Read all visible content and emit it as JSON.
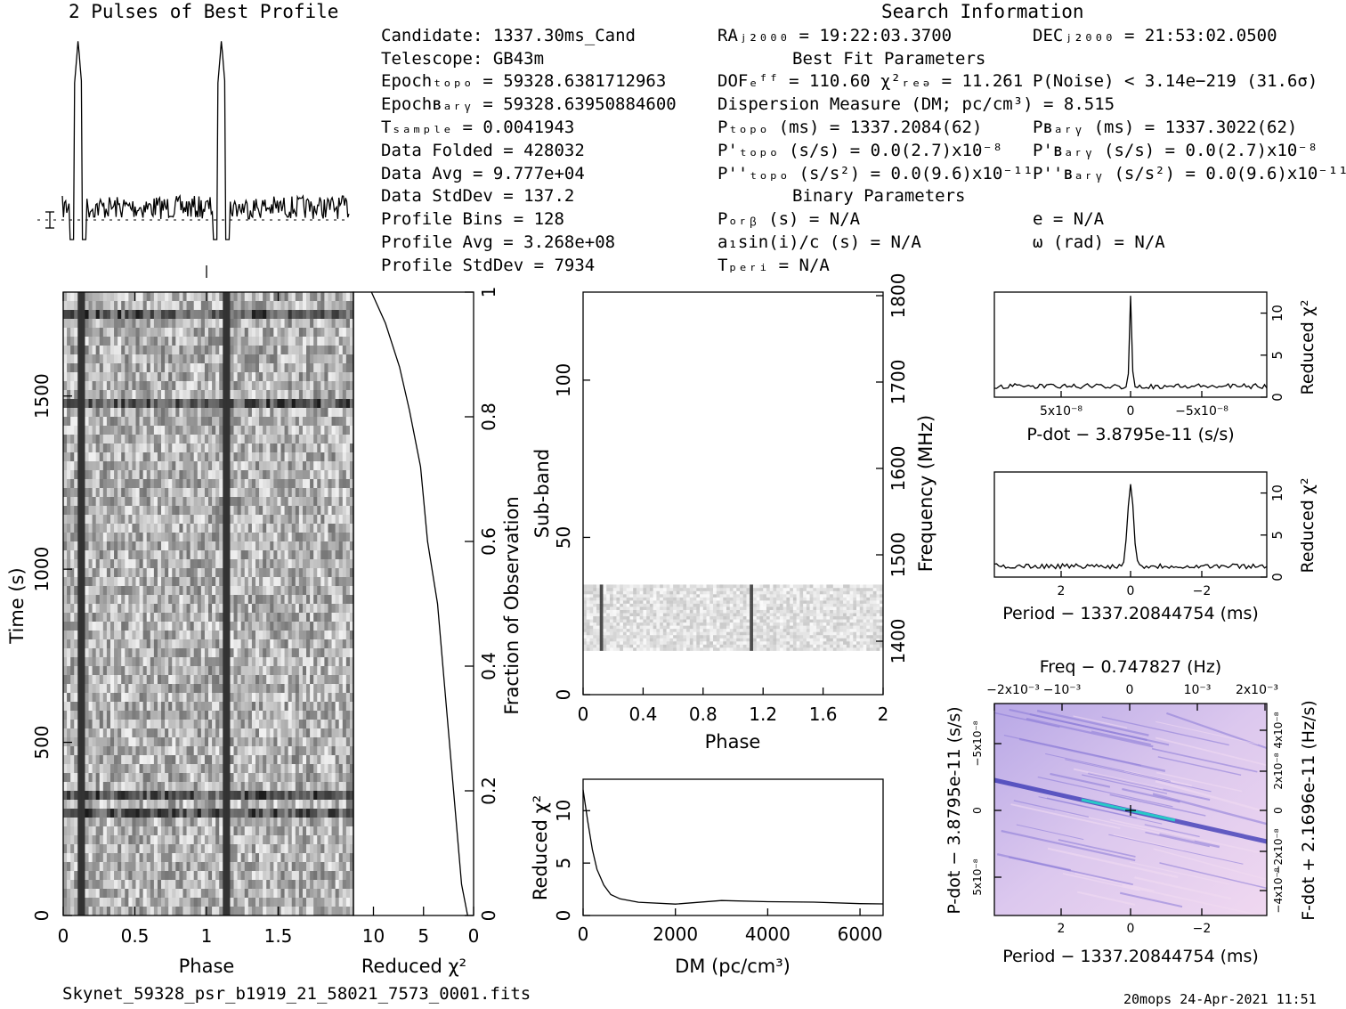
{
  "header": {
    "profile_title": "2 Pulses of Best Profile",
    "search_title": "Search Information",
    "best_fit_title": "Best Fit Parameters",
    "binary_title": "Binary Parameters"
  },
  "candidate": [
    "Candidate:  1337.30ms_Cand",
    "Telescope:  GB43m",
    "Epochₜₒₚₒ = 59328.6381712963",
    "Epochʙₐᵣᵧ = 59328.63950884600",
    "Tₛₐₘₚₗₑ      =  0.0041943",
    "Data Folded     =  428032",
    "Data Avg        =  9.777e+04",
    "Data StdDev     =  137.2",
    "Profile Bins    =  128",
    "Profile Avg     =  3.268e+08",
    "Profile StdDev  =  7934"
  ],
  "search": {
    "ra": "RAⱼ₂₀₀₀ = 19:22:03.3700",
    "dec": "DECⱼ₂₀₀₀ = 21:53:02.0500",
    "dof": "DOFₑᶠᶠ = 110.60   χ²ᵣₑₔ = 11.261",
    "pnoise": "P(Noise) < 3.14e−219   (31.6σ)",
    "dm": "Dispersion Measure (DM; pc/cm³) = 8.515",
    "ptopo": "Pₜₒₚₒ (ms) =  1337.2084(62)",
    "pbary": "Pʙₐᵣᵧ (ms) =  1337.3022(62)",
    "pdtopo": "P'ₜₒₚₒ (s/s) = 0.0(2.7)x10⁻⁸",
    "pdbary": "P'ʙₐᵣᵧ (s/s) = 0.0(2.7)x10⁻⁸",
    "pddtopo": "P''ₜₒₚₒ (s/s²) = 0.0(9.6)x10⁻¹¹",
    "pddbary": "P''ʙₐᵣᵧ (s/s²) = 0.0(9.6)x10⁻¹¹",
    "porb": "Pₒᵣᵦ (s) = N/A",
    "ecc": "e = N/A",
    "a1": "a₁sin(i)/c (s) = N/A",
    "omega": "ω (rad) = N/A",
    "tperi": "Tₚₑᵣᵢ = N/A"
  },
  "labels": {
    "phase": "Phase",
    "time": "Time (s)",
    "reduced_chi2": "Reduced χ²",
    "fraction": "Fraction of Observation",
    "subband": "Sub-band",
    "frequency": "Frequency (MHz)",
    "dm_axis": "DM (pc/cm³)",
    "pdot_axis": "P-dot − 3.8795e-11 (s/s)",
    "period_axis": "Period − 1337.20844754 (ms)",
    "freq_axis": "Freq − 0.747827 (Hz)",
    "fdot_axis": "F-dot + 2.1696e-11 (Hz/s)"
  },
  "footer": {
    "filename": "Skynet_59328_psr_b1919_21_58021_7573_0001.fits",
    "stamp": "20mops 24-Apr-2021 11:51"
  },
  "chart_data": [
    {
      "type": "line",
      "id": "profile",
      "title": "2 Pulses of Best Profile",
      "x": {
        "label": "Phase",
        "range": [
          0,
          2
        ]
      },
      "series": [
        {
          "values": "pulse peaks at phase 0.11 and 1.11"
        }
      ]
    },
    {
      "type": "heatmap",
      "id": "time-phase",
      "x": {
        "label": "Phase",
        "range": [
          0,
          2
        ],
        "ticks": [
          "0",
          "0.5",
          "1",
          "1.5"
        ]
      },
      "y": {
        "label": "Time (s)",
        "range": [
          0,
          1800
        ],
        "ticks": [
          "0",
          "500",
          "1000",
          "1500"
        ]
      }
    },
    {
      "type": "line",
      "id": "chi2-vs-time",
      "x": {
        "label": "Reduced χ²",
        "range": [
          12,
          0
        ],
        "ticks": [
          "10",
          "5",
          "0"
        ]
      },
      "y2": {
        "label": "Fraction of Observation",
        "range": [
          0,
          1
        ],
        "ticks": [
          "0",
          "0.2",
          "0.4",
          "0.6",
          "0.8",
          "1"
        ]
      },
      "points": [
        [
          0.6,
          0.0
        ],
        [
          1.2,
          0.05
        ],
        [
          2,
          0.2
        ],
        [
          2.8,
          0.35
        ],
        [
          3.6,
          0.5
        ],
        [
          4.6,
          0.6
        ],
        [
          5.3,
          0.72
        ],
        [
          6.4,
          0.81
        ],
        [
          7.4,
          0.88
        ],
        [
          8.8,
          0.95
        ],
        [
          10.2,
          1.0
        ]
      ]
    },
    {
      "type": "heatmap",
      "id": "subband-phase",
      "x": {
        "label": "Phase",
        "range": [
          0,
          2
        ],
        "ticks": [
          "0",
          "0.4",
          "0.8",
          "1.2",
          "1.6",
          "2"
        ]
      },
      "y": {
        "label": "Sub-band",
        "range": [
          0,
          128
        ],
        "ticks": [
          "0",
          "50",
          "100"
        ]
      },
      "y2": {
        "label": "Frequency (MHz)",
        "ticks": [
          "1400",
          "1500",
          "1600",
          "1700",
          "1800"
        ]
      },
      "occupied_subbands": [
        14,
        35
      ]
    },
    {
      "type": "line",
      "id": "chi2-vs-dm",
      "x": {
        "label": "DM (pc/cm³)",
        "range": [
          0,
          6500
        ],
        "ticks": [
          "0",
          "2000",
          "4000",
          "6000"
        ]
      },
      "y": {
        "label": "Reduced χ²",
        "range": [
          0,
          13
        ],
        "ticks": [
          "0",
          "5",
          "10"
        ]
      },
      "points": [
        [
          0,
          12
        ],
        [
          100,
          9
        ],
        [
          200,
          6.3
        ],
        [
          300,
          4.4
        ],
        [
          450,
          2.9
        ],
        [
          600,
          2.0
        ],
        [
          800,
          1.5
        ],
        [
          1200,
          1.3
        ],
        [
          2000,
          1.2
        ],
        [
          3000,
          1.3
        ],
        [
          4000,
          1.25
        ],
        [
          5000,
          1.3
        ],
        [
          6000,
          1.2
        ],
        [
          6500,
          1.2
        ]
      ]
    },
    {
      "type": "line",
      "id": "chi2-vs-pdot",
      "x": {
        "label": "P-dot − 3.8795e-11 (s/s)",
        "ticks": [
          "5x10⁻⁸",
          "0",
          "−5x10⁻⁸"
        ]
      },
      "y": {
        "label": "Reduced χ²",
        "range": [
          0,
          12.5
        ],
        "ticks": [
          "0",
          "5",
          "10"
        ]
      },
      "peak": {
        "x": 0,
        "y": 12
      }
    },
    {
      "type": "line",
      "id": "chi2-vs-period",
      "x": {
        "label": "Period − 1337.20844754 (ms)",
        "ticks": [
          "2",
          "0",
          "−2"
        ]
      },
      "y": {
        "label": "Reduced χ²",
        "range": [
          0,
          12.5
        ],
        "ticks": [
          "0",
          "5",
          "10"
        ]
      },
      "peak": {
        "x": 0,
        "y": 11
      }
    },
    {
      "type": "heatmap",
      "id": "p-pdot",
      "x": {
        "label": "Period − 1337.20844754 (ms)",
        "ticks": [
          "2",
          "0",
          "−2"
        ]
      },
      "x2": {
        "label": "Freq − 0.747827 (Hz)",
        "ticks": [
          "−2x10⁻³",
          "−10⁻³",
          "0",
          "10⁻³",
          "2x10⁻³"
        ]
      },
      "y": {
        "label": "P-dot − 3.8795e-11 (s/s)",
        "ticks": [
          "−5x10⁻⁸",
          "0",
          "5x10⁻⁸"
        ]
      },
      "y2": {
        "label": "F-dot + 2.1696e-11 (Hz/s)",
        "ticks": [
          "4x10⁻⁸",
          "2x10⁻⁸",
          "0",
          "−2x10⁻⁸",
          "−4x10⁻⁸"
        ]
      }
    }
  ]
}
